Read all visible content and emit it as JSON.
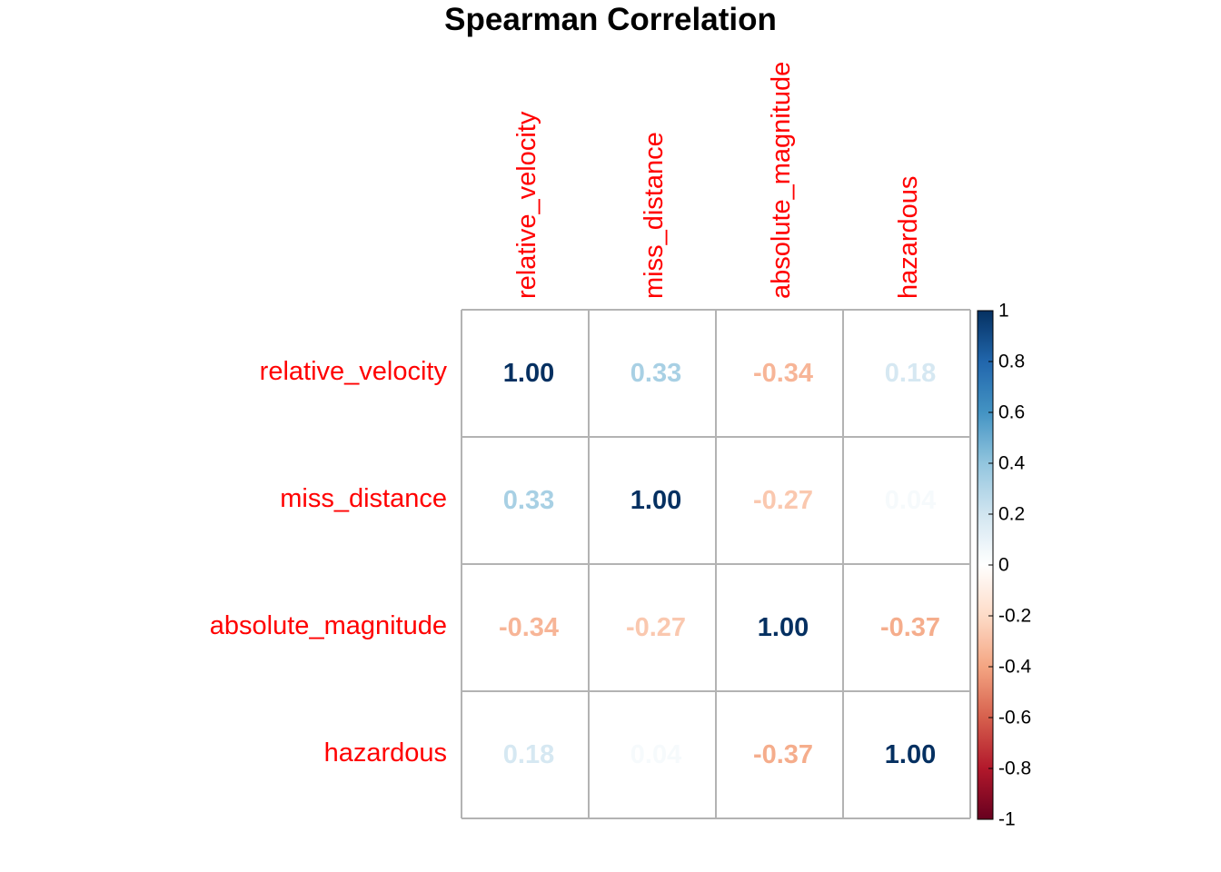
{
  "chart_data": {
    "type": "heatmap",
    "title": "Spearman Correlation",
    "variables": [
      "relative_velocity",
      "miss_distance",
      "absolute_magnitude",
      "hazardous"
    ],
    "matrix": [
      [
        1.0,
        0.33,
        -0.34,
        0.18
      ],
      [
        0.33,
        1.0,
        -0.27,
        0.04
      ],
      [
        -0.34,
        -0.27,
        1.0,
        -0.37
      ],
      [
        0.18,
        0.04,
        -0.37,
        1.0
      ]
    ],
    "value_labels": [
      [
        "1.00",
        "0.33",
        "-0.34",
        "0.18"
      ],
      [
        "0.33",
        "1.00",
        "-0.27",
        "0.04"
      ],
      [
        "-0.34",
        "-0.27",
        "1.00",
        "-0.37"
      ],
      [
        "0.18",
        "0.04",
        "-0.37",
        "1.00"
      ]
    ],
    "color_range": [
      -1,
      1
    ],
    "colorbar_ticks": [
      "1",
      "0.8",
      "0.6",
      "0.4",
      "0.2",
      "0",
      "-0.2",
      "-0.4",
      "-0.6",
      "-0.8",
      "-1"
    ],
    "colorbar_tick_values": [
      1,
      0.8,
      0.6,
      0.4,
      0.2,
      0,
      -0.2,
      -0.4,
      -0.6,
      -0.8,
      -1
    ],
    "label_color": "#ff0000",
    "grid_color": "#b3b3b3",
    "legend_position": "right",
    "palette": [
      "#67001F",
      "#B2182B",
      "#D6604D",
      "#F4A582",
      "#FDDBC7",
      "#FFFFFF",
      "#D1E5F0",
      "#92C5DE",
      "#4393C3",
      "#2166AC",
      "#053061"
    ]
  }
}
